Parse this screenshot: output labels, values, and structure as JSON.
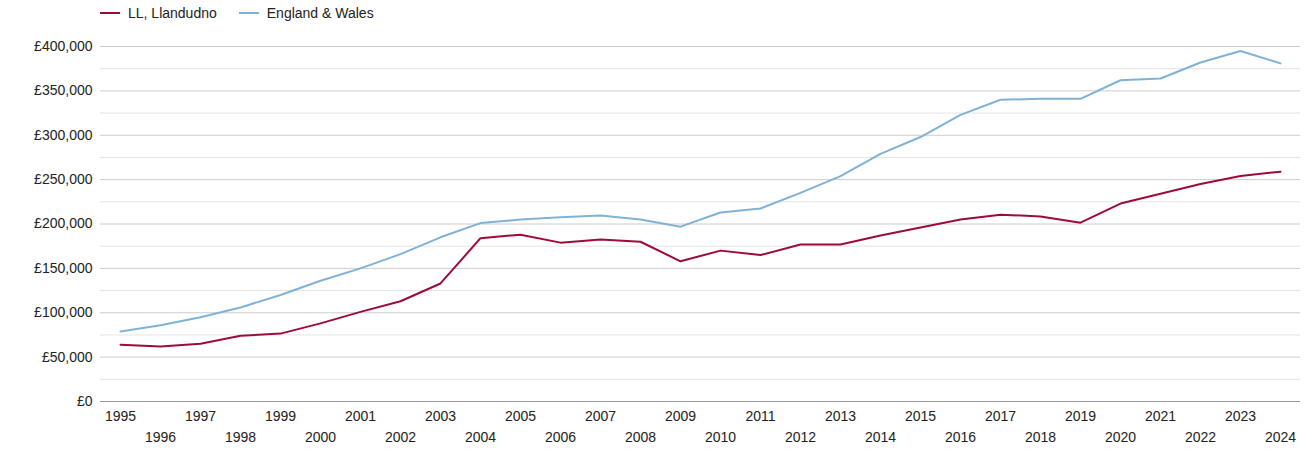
{
  "chart_data": {
    "type": "line",
    "x": [
      1995,
      1996,
      1997,
      1998,
      1999,
      2000,
      2001,
      2002,
      2003,
      2004,
      2005,
      2006,
      2007,
      2008,
      2009,
      2010,
      2011,
      2012,
      2013,
      2014,
      2015,
      2016,
      2017,
      2018,
      2019,
      2020,
      2021,
      2022,
      2023,
      2024
    ],
    "series": [
      {
        "name": "LL, Llandudno",
        "color": "#9e0b3b",
        "values": [
          64000,
          62000,
          65000,
          74000,
          76500,
          88000,
          101000,
          113000,
          133000,
          184000,
          188000,
          179000,
          182500,
          180000,
          158000,
          170000,
          165000,
          177000,
          177000,
          187000,
          196000,
          205000,
          210500,
          208500,
          201500,
          223000,
          234000,
          245000,
          254000,
          259000
        ]
      },
      {
        "name": "England & Wales",
        "color": "#7fb2d6",
        "values": [
          79000,
          86000,
          95000,
          106000,
          120000,
          136000,
          150000,
          166000,
          185000,
          201000,
          205000,
          207500,
          209500,
          205000,
          197000,
          213000,
          217500,
          235000,
          254000,
          279000,
          298000,
          323000,
          340000,
          341000,
          341000,
          362000,
          364000,
          382000,
          395000,
          381000
        ]
      }
    ],
    "xlim": [
      1994.5,
      2024.5
    ],
    "xticks": [
      1995,
      1996,
      1997,
      1998,
      1999,
      2000,
      2001,
      2002,
      2003,
      2004,
      2005,
      2006,
      2007,
      2008,
      2009,
      2010,
      2011,
      2012,
      2013,
      2014,
      2015,
      2016,
      2017,
      2018,
      2019,
      2020,
      2021,
      2022,
      2023,
      2024
    ],
    "ylim": [
      0,
      400000
    ],
    "yticks": [
      {
        "value": 0,
        "label": "£0"
      },
      {
        "value": 50000,
        "label": "£50,000"
      },
      {
        "value": 100000,
        "label": "£100,000"
      },
      {
        "value": 150000,
        "label": "£150,000"
      },
      {
        "value": 200000,
        "label": "£200,000"
      },
      {
        "value": 250000,
        "label": "£250,000"
      },
      {
        "value": 300000,
        "label": "£300,000"
      },
      {
        "value": 350000,
        "label": "£350,000"
      },
      {
        "value": 400000,
        "label": "£400,000"
      }
    ],
    "grid": true,
    "legend": "top-left"
  }
}
